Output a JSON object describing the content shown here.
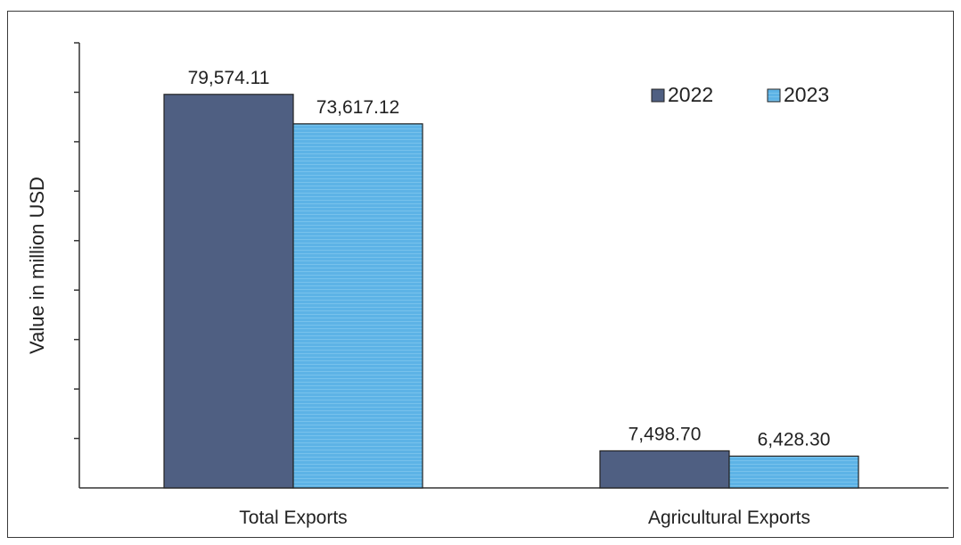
{
  "chart_data": {
    "type": "bar",
    "title": "",
    "xlabel": "",
    "ylabel": "Value in million USD",
    "categories": [
      "Total Exports",
      "Agricultural Exports"
    ],
    "series": [
      {
        "name": "2022",
        "values": [
          79574.11,
          7498.7
        ],
        "labels": [
          "79,574.11",
          "7,498.70"
        ],
        "color": "#4f5f82"
      },
      {
        "name": "2023",
        "values": [
          73617.12,
          6428.3
        ],
        "labels": [
          "73,617.12",
          "6,428.30"
        ],
        "color": "#5db3e6"
      }
    ],
    "ylim": [
      0,
      90000
    ],
    "y_tick_step": 10000,
    "y_tick_labels_shown": false,
    "grid": false,
    "legend": "top-right"
  }
}
